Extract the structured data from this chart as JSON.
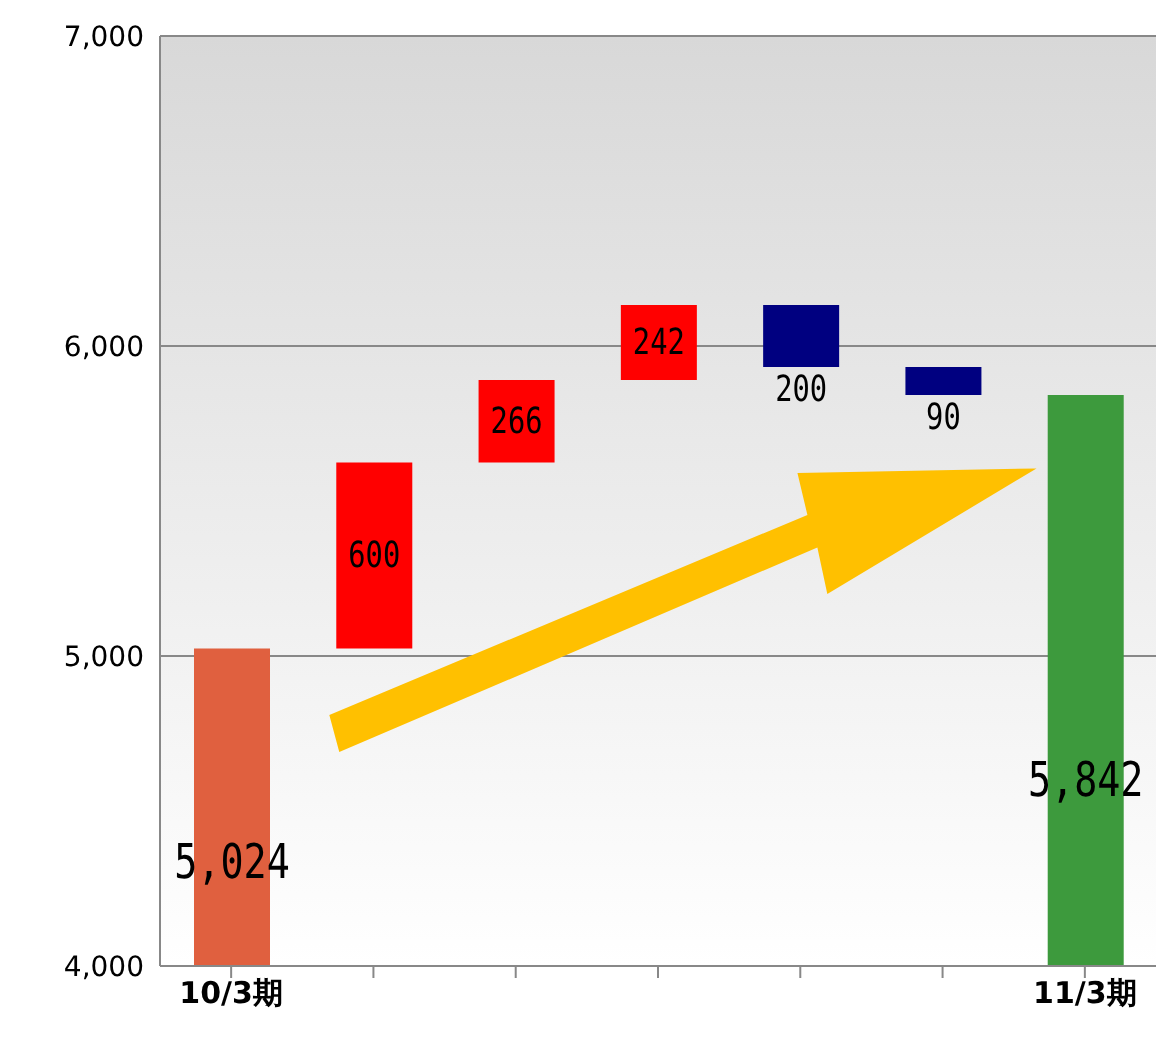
{
  "chart_data": {
    "type": "bar",
    "categories": [
      "10/3期",
      null,
      null,
      null,
      null,
      null,
      "11/3期"
    ],
    "values": [
      5024,
      600,
      266,
      242,
      -200,
      -90,
      5842
    ],
    "base": [
      null,
      5024,
      5624,
      5890,
      6132,
      5932,
      null
    ],
    "colors": [
      "#e0603f",
      "#ff0000",
      "#ff0000",
      "#ff0000",
      "#000080",
      "#000080",
      "#3d9a3d"
    ],
    "value_labels": [
      "5,024",
      "600",
      "266",
      "242",
      "200",
      "90",
      "5,842"
    ],
    "ylim": [
      4000,
      7000
    ],
    "yticks": [
      {
        "value": 4000,
        "label": "4,000"
      },
      {
        "value": 5000,
        "label": "5,000"
      },
      {
        "value": 6000,
        "label": "6,000"
      },
      {
        "value": 7000,
        "label": "7,000"
      }
    ],
    "grid": "y"
  }
}
